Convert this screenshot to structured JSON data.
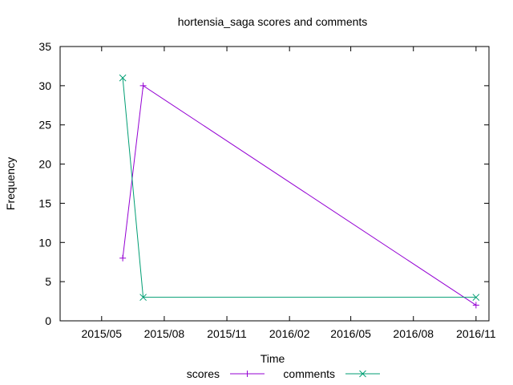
{
  "chart_data": {
    "type": "line",
    "title": "hortensia_saga scores and comments",
    "xlabel": "Time",
    "ylabel": "Frequency",
    "xlim": [
      "2015-03-01",
      "2016-11-20"
    ],
    "ylim": [
      0,
      35
    ],
    "xticks": [
      "2015/05",
      "2015/08",
      "2015/11",
      "2016/02",
      "2016/05",
      "2016/08",
      "2016/11"
    ],
    "yticks": [
      0,
      5,
      10,
      15,
      20,
      25,
      30,
      35
    ],
    "grid": false,
    "legend": "bottom-center",
    "series": [
      {
        "name": "scores",
        "color": "#9400d3",
        "marker": "plus",
        "x": [
          "2015-06-01",
          "2015-07-01",
          "2016-11-01"
        ],
        "y": [
          8,
          30,
          2
        ]
      },
      {
        "name": "comments",
        "color": "#009e73",
        "marker": "cross",
        "x": [
          "2015-06-01",
          "2015-07-01",
          "2016-11-01"
        ],
        "y": [
          31,
          3,
          3
        ]
      }
    ]
  }
}
